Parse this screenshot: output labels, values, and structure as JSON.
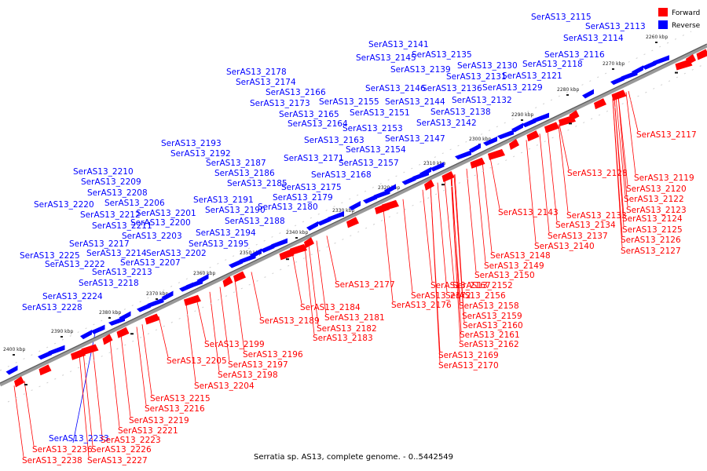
{
  "caption": "Serratia sp. AS13, complete genome. - 0..5442549",
  "legend": [
    {
      "label": "Forward",
      "color": "#ff0000"
    },
    {
      "label": "Reverse",
      "color": "#0000ff"
    }
  ],
  "colors": {
    "forward": "#ff0000",
    "reverse": "#0000ff",
    "backbone": "#808080"
  },
  "kbp_ticks": [
    "2260 kbp",
    "2270 kbp",
    "2280 kbp",
    "2290 kbp",
    "2300 kbp",
    "2310 kbp",
    "2320 kbp",
    "2330 kbp",
    "2340 kbp",
    "2350 kbp",
    "2360 kbp",
    "2370 kbp",
    "2380 kbp",
    "2390 kbp",
    "2400 kbp"
  ],
  "reverse_genes": [
    "SerAS13_2113",
    "SerAS13_2114",
    "SerAS13_2115",
    "SerAS13_2116",
    "SerAS13_2118",
    "SerAS13_2121",
    "SerAS13_2129",
    "SerAS13_2130",
    "SerAS13_2131",
    "SerAS13_2132",
    "SerAS13_2135",
    "SerAS13_2136",
    "SerAS13_2138",
    "SerAS13_2139",
    "SerAS13_2141",
    "SerAS13_2142",
    "SerAS13_2144",
    "SerAS13_2145",
    "SerAS13_2146",
    "SerAS13_2147",
    "SerAS13_2151",
    "SerAS13_2153",
    "SerAS13_2154",
    "SerAS13_2155",
    "SerAS13_2157",
    "SerAS13_2163",
    "SerAS13_2164",
    "SerAS13_2165",
    "SerAS13_2166",
    "SerAS13_2168",
    "SerAS13_2171",
    "SerAS13_2173",
    "SerAS13_2174",
    "SerAS13_2175",
    "SerAS13_2178",
    "SerAS13_2179",
    "SerAS13_2180",
    "SerAS13_2185",
    "SerAS13_2186",
    "SerAS13_2187",
    "SerAS13_2188",
    "SerAS13_2190",
    "SerAS13_2191",
    "SerAS13_2192",
    "SerAS13_2193",
    "SerAS13_2194",
    "SerAS13_2195",
    "SerAS13_2200",
    "SerAS13_2201",
    "SerAS13_2202",
    "SerAS13_2203",
    "SerAS13_2206",
    "SerAS13_2207",
    "SerAS13_2208",
    "SerAS13_2209",
    "SerAS13_2210",
    "SerAS13_2211",
    "SerAS13_2212",
    "SerAS13_2213",
    "SerAS13_2214",
    "SerAS13_2217",
    "SerAS13_2218",
    "SerAS13_2220",
    "SerAS13_2222",
    "SerAS13_2224",
    "SerAS13_2225",
    "SerAS13_2228",
    "SerAS13_2233"
  ],
  "forward_genes": [
    "SerAS13_2117",
    "SerAS13_2119",
    "SerAS13_2120",
    "SerAS13_2122",
    "SerAS13_2123",
    "SerAS13_2124",
    "SerAS13_2125",
    "SerAS13_2126",
    "SerAS13_2127",
    "SerAS13_2128",
    "SerAS13_2133",
    "SerAS13_2134",
    "SerAS13_2137",
    "SerAS13_2140",
    "SerAS13_2143",
    "SerAS13_2148",
    "SerAS13_2149",
    "SerAS13_2150",
    "SerAS13_2152",
    "SerAS13_2156",
    "SerAS13_2158",
    "SerAS13_2159",
    "SerAS13_2160",
    "SerAS13_2161",
    "SerAS13_2162",
    "SerAS13_2167",
    "SerAS13_2169",
    "SerAS13_2170",
    "SerAS13_2172",
    "SerAS13_2176",
    "SerAS13_2177",
    "SerAS13_2181",
    "SerAS13_2182",
    "SerAS13_2183",
    "SerAS13_2184",
    "SerAS13_2189",
    "SerAS13_2196",
    "SerAS13_2197",
    "SerAS13_2198",
    "SerAS13_2199",
    "SerAS13_2204",
    "SerAS13_2205",
    "SerAS13_2215",
    "SerAS13_2216",
    "SerAS13_2219",
    "SerAS13_2221",
    "SerAS13_2223",
    "SerAS13_2226",
    "SerAS13_2227",
    "SerAS13_2236",
    "SerAS13_2238"
  ]
}
